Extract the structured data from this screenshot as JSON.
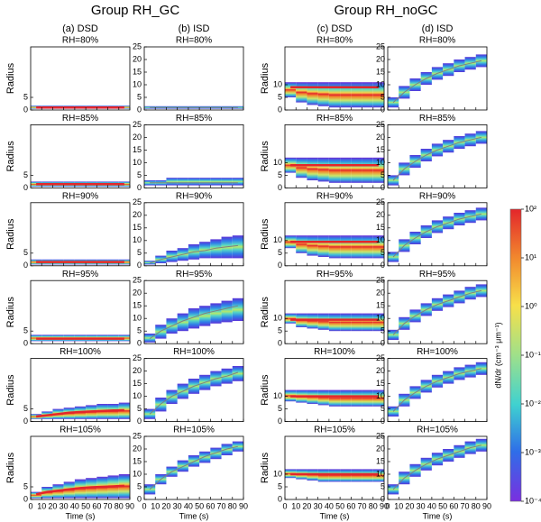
{
  "group_titles": [
    "Group RH_GC",
    "Group RH_noGC"
  ],
  "columns": [
    {
      "title": "(a) DSD",
      "kind": "DSD",
      "center_color": "#e3262b",
      "yticks": [
        0,
        5
      ]
    },
    {
      "title": "(b) ISD",
      "kind": "ISD",
      "center_color": "#808080",
      "yticks": [
        0,
        5,
        10,
        15,
        20,
        25
      ]
    },
    {
      "title": "(c) DSD",
      "kind": "DSD",
      "center_color": "#e3262b",
      "yticks": [
        0,
        5,
        10
      ]
    },
    {
      "title": "(d) ISD",
      "kind": "ISD",
      "center_color": "#808080",
      "yticks": [
        0,
        5,
        10,
        15,
        20,
        25
      ]
    }
  ],
  "x_axis": {
    "label": "Time (s)",
    "lim": [
      0,
      90
    ],
    "ticks": [
      0,
      10,
      20,
      30,
      40,
      50,
      60,
      70,
      80,
      90
    ]
  },
  "y_axis": {
    "label": "Radius",
    "lim": [
      0,
      25
    ]
  },
  "colorbar": {
    "label": "dN/dr (cm⁻³ μm⁻¹)",
    "lim": [
      0.0001,
      100
    ],
    "log": true,
    "ticks": [
      {
        "value": 100,
        "label": "10²"
      },
      {
        "value": 10,
        "label": "10¹"
      },
      {
        "value": 1,
        "label": "10⁰"
      },
      {
        "value": 0.1,
        "label": "10⁻¹"
      },
      {
        "value": 0.01,
        "label": "10⁻²"
      },
      {
        "value": 0.001,
        "label": "10⁻³"
      },
      {
        "value": 0.0001,
        "label": "10⁻⁴"
      }
    ]
  },
  "chart_data": [
    {
      "type": "heatmap",
      "title": "RH=80%",
      "x": [
        5,
        15,
        25,
        35,
        45,
        55,
        65,
        75,
        85
      ],
      "center": [
        1,
        1,
        1,
        1,
        1,
        1,
        1,
        1,
        1
      ],
      "lower": [
        0.5,
        0.5,
        0.5,
        0.5,
        0.5,
        0.5,
        0.5,
        0.5,
        0.5
      ],
      "upper": [
        1.7,
        1.7,
        1.7,
        1.7,
        1.7,
        1.7,
        1.7,
        1.7,
        1.7
      ]
    },
    {
      "type": "heatmap",
      "title": "RH=80%",
      "x": [
        5,
        15,
        25,
        35,
        45,
        55,
        65,
        75,
        85
      ],
      "center": [
        1,
        1,
        1,
        1,
        1,
        1,
        1,
        1,
        1
      ],
      "lower": [
        0.5,
        0.5,
        0.5,
        0.5,
        0.5,
        0.5,
        0.5,
        0.5,
        0.5
      ],
      "upper": [
        1.5,
        1.5,
        1.5,
        1.5,
        1.5,
        1.5,
        1.5,
        1.5,
        1.5
      ]
    },
    {
      "type": "heatmap",
      "title": "RH=80%",
      "x": [
        5,
        15,
        25,
        35,
        45,
        55,
        65,
        75,
        85
      ],
      "center": [
        9,
        9,
        9,
        9,
        9,
        9,
        9,
        9,
        9
      ],
      "lower": [
        5,
        3,
        2,
        1.5,
        1,
        1,
        1,
        1,
        1
      ],
      "upper": [
        11,
        11,
        11,
        11,
        11,
        11,
        11,
        11,
        11
      ]
    },
    {
      "type": "heatmap",
      "title": "RH=80%",
      "x": [
        5,
        15,
        25,
        35,
        45,
        55,
        65,
        75,
        85
      ],
      "center": [
        3,
        7,
        10,
        12.5,
        14.5,
        16,
        17.5,
        18.5,
        19.5
      ],
      "lower": [
        1,
        4.5,
        7.5,
        10,
        12,
        13.5,
        15,
        16,
        17
      ],
      "upper": [
        5,
        9.5,
        12.5,
        15,
        17,
        18.5,
        20,
        21,
        22
      ]
    },
    {
      "type": "heatmap",
      "title": "RH=85%",
      "x": [
        5,
        15,
        25,
        35,
        45,
        55,
        65,
        75,
        85
      ],
      "center": [
        1.5,
        1.5,
        1.5,
        1.5,
        1.5,
        1.5,
        1.5,
        1.5,
        1.5
      ],
      "lower": [
        0.5,
        0.5,
        0.5,
        0.5,
        0.5,
        0.5,
        0.5,
        0.5,
        0.5
      ],
      "upper": [
        2.5,
        2.5,
        2.5,
        2.5,
        2.5,
        2.5,
        2.5,
        2.5,
        2.5
      ]
    },
    {
      "type": "heatmap",
      "title": "RH=85%",
      "x": [
        5,
        15,
        25,
        35,
        45,
        55,
        65,
        75,
        85
      ],
      "center": [
        2,
        2,
        2,
        2,
        2,
        2,
        2,
        2,
        2
      ],
      "lower": [
        1,
        1,
        1,
        1,
        1,
        1,
        1,
        1,
        1
      ],
      "upper": [
        3,
        3,
        4,
        4,
        4,
        4,
        4,
        4,
        4
      ]
    },
    {
      "type": "heatmap",
      "title": "RH=85%",
      "x": [
        5,
        15,
        25,
        35,
        45,
        55,
        65,
        75,
        85
      ],
      "center": [
        9,
        9,
        9,
        9,
        9,
        9,
        9,
        9,
        9
      ],
      "lower": [
        6,
        4,
        3,
        2.5,
        2,
        2,
        2,
        2,
        2
      ],
      "upper": [
        12,
        12,
        12,
        12,
        12,
        12,
        12,
        12,
        12
      ]
    },
    {
      "type": "heatmap",
      "title": "RH=85%",
      "x": [
        5,
        15,
        25,
        35,
        45,
        55,
        65,
        75,
        85
      ],
      "center": [
        3,
        7.5,
        10.5,
        13,
        15,
        16.5,
        18,
        19,
        20
      ],
      "lower": [
        1,
        5,
        8,
        10.5,
        12.5,
        14,
        15.5,
        16.5,
        17.5
      ],
      "upper": [
        5,
        10,
        13,
        15.5,
        17.5,
        19,
        20.5,
        21.5,
        22.5
      ]
    },
    {
      "type": "heatmap",
      "title": "RH=90%",
      "x": [
        5,
        15,
        25,
        35,
        45,
        55,
        65,
        75,
        85
      ],
      "center": [
        1.5,
        1.5,
        1.5,
        1.5,
        1.5,
        1.5,
        1.5,
        1.5,
        1.5
      ],
      "lower": [
        0.5,
        0.5,
        0.5,
        0.5,
        0.5,
        0.5,
        0.5,
        0.5,
        0.5
      ],
      "upper": [
        2.5,
        2.5,
        2.5,
        2.5,
        2.5,
        2.5,
        2.5,
        2.5,
        2.5
      ]
    },
    {
      "type": "heatmap",
      "title": "RH=90%",
      "x": [
        5,
        15,
        25,
        35,
        45,
        55,
        65,
        75,
        85
      ],
      "center": [
        1,
        2.5,
        3.5,
        4.5,
        5.5,
        6,
        7,
        7.5,
        8
      ],
      "lower": [
        0.5,
        1,
        1.5,
        2,
        2.5,
        3,
        3,
        3,
        3
      ],
      "upper": [
        2,
        4,
        6,
        7,
        8.5,
        9.5,
        10.5,
        11.5,
        12
      ]
    },
    {
      "type": "heatmap",
      "title": "RH=90%",
      "x": [
        5,
        15,
        25,
        35,
        45,
        55,
        65,
        75,
        85
      ],
      "center": [
        9.5,
        9.5,
        9.5,
        9.5,
        9.5,
        9.5,
        9.5,
        9.5,
        9.5
      ],
      "lower": [
        7,
        5,
        4,
        3.5,
        3,
        3,
        3,
        3,
        3
      ],
      "upper": [
        12,
        12,
        12,
        12,
        12,
        12,
        12,
        12,
        12
      ]
    },
    {
      "type": "heatmap",
      "title": "RH=90%",
      "x": [
        5,
        15,
        25,
        35,
        45,
        55,
        65,
        75,
        85
      ],
      "center": [
        3.5,
        8,
        11,
        13.5,
        15.5,
        17,
        18.5,
        19.5,
        20.5
      ],
      "lower": [
        1.5,
        5.5,
        8.5,
        11,
        13,
        14.5,
        16,
        17,
        18
      ],
      "upper": [
        5.5,
        10.5,
        13.5,
        16,
        18,
        19.5,
        21,
        22,
        23
      ]
    },
    {
      "type": "heatmap",
      "title": "RH=95%",
      "x": [
        5,
        15,
        25,
        35,
        45,
        55,
        65,
        75,
        85
      ],
      "center": [
        2,
        2,
        2,
        2,
        2,
        2,
        2,
        2,
        2
      ],
      "lower": [
        1,
        1,
        1,
        1,
        1,
        1,
        1,
        1,
        1
      ],
      "upper": [
        3.5,
        3.5,
        3.5,
        3.5,
        3.5,
        3.5,
        3.5,
        3.5,
        3.5
      ]
    },
    {
      "type": "heatmap",
      "title": "RH=95%",
      "x": [
        5,
        15,
        25,
        35,
        45,
        55,
        65,
        75,
        85
      ],
      "center": [
        2,
        5,
        7,
        9,
        10.5,
        12,
        13,
        14,
        15
      ],
      "lower": [
        0.5,
        2,
        4,
        5,
        6,
        7,
        8,
        8.5,
        9
      ],
      "upper": [
        4,
        7.5,
        10,
        12,
        14,
        15,
        16,
        17,
        18
      ]
    },
    {
      "type": "heatmap",
      "title": "RH=95%",
      "x": [
        5,
        15,
        25,
        35,
        45,
        55,
        65,
        75,
        85
      ],
      "center": [
        9.5,
        9.5,
        9.5,
        9.5,
        9.5,
        9.5,
        9.5,
        9.5,
        9.5
      ],
      "lower": [
        8,
        6.5,
        6,
        5.5,
        5,
        5,
        5,
        5,
        5
      ],
      "upper": [
        12,
        12,
        12,
        12,
        12,
        12,
        12,
        12,
        12
      ]
    },
    {
      "type": "heatmap",
      "title": "RH=95%",
      "x": [
        5,
        15,
        25,
        35,
        45,
        55,
        65,
        75,
        85
      ],
      "center": [
        3.5,
        8,
        11,
        13.5,
        15.5,
        17,
        18.5,
        20,
        21
      ],
      "lower": [
        1.5,
        5.5,
        8.5,
        11,
        13,
        14.5,
        16,
        17.5,
        18.5
      ],
      "upper": [
        5.5,
        10.5,
        13.5,
        16,
        18,
        19.5,
        21,
        22.5,
        23.5
      ]
    },
    {
      "type": "heatmap",
      "title": "RH=100%",
      "x": [
        5,
        15,
        25,
        35,
        45,
        55,
        65,
        75,
        85
      ],
      "center": [
        2,
        2.5,
        3,
        3.5,
        3.8,
        4,
        4.2,
        4.4,
        4.5
      ],
      "lower": [
        1,
        1,
        1,
        1,
        1,
        1,
        1,
        1,
        1
      ],
      "upper": [
        3,
        4,
        5,
        5.5,
        6,
        6.5,
        7,
        7,
        7.5
      ]
    },
    {
      "type": "heatmap",
      "title": "RH=100%",
      "x": [
        5,
        15,
        25,
        35,
        45,
        55,
        65,
        75,
        85
      ],
      "center": [
        3,
        7,
        10,
        12,
        14,
        15.5,
        17,
        18,
        19.5
      ],
      "lower": [
        1,
        4,
        7,
        9,
        11,
        12.5,
        14,
        15,
        16
      ],
      "upper": [
        5,
        9.5,
        12.5,
        15,
        17,
        18.5,
        20,
        21,
        22
      ]
    },
    {
      "type": "heatmap",
      "title": "RH=100%",
      "x": [
        5,
        15,
        25,
        35,
        45,
        55,
        65,
        75,
        85
      ],
      "center": [
        10,
        10,
        10,
        10,
        10,
        10,
        10,
        10,
        10
      ],
      "lower": [
        8,
        7.5,
        7,
        6.5,
        6,
        6,
        6,
        6,
        6
      ],
      "upper": [
        12.5,
        12.5,
        12.5,
        12.5,
        12.5,
        12.5,
        12.5,
        12.5,
        12.5
      ]
    },
    {
      "type": "heatmap",
      "title": "RH=100%",
      "x": [
        5,
        15,
        25,
        35,
        45,
        55,
        65,
        75,
        85
      ],
      "center": [
        4,
        8.5,
        11.5,
        14,
        16,
        17.5,
        19,
        20,
        21
      ],
      "lower": [
        2,
        6,
        9,
        11.5,
        13.5,
        15,
        16.5,
        17.5,
        18.5
      ],
      "upper": [
        6,
        11,
        14,
        16.5,
        18.5,
        20,
        21.5,
        22.5,
        23.5
      ]
    },
    {
      "type": "heatmap",
      "title": "RH=105%",
      "x": [
        5,
        15,
        25,
        35,
        45,
        55,
        65,
        75,
        85
      ],
      "center": [
        2,
        3,
        3.5,
        4,
        4.5,
        4.8,
        5,
        5.2,
        5.4
      ],
      "lower": [
        0.5,
        0.5,
        0.5,
        0.5,
        0.5,
        0.5,
        0.5,
        0.5,
        0.5
      ],
      "upper": [
        3,
        5,
        6,
        7,
        8,
        8.5,
        9,
        9.5,
        10
      ]
    },
    {
      "type": "heatmap",
      "title": "RH=105%",
      "x": [
        5,
        15,
        25,
        35,
        45,
        55,
        65,
        75,
        85
      ],
      "center": [
        4,
        8,
        11,
        13,
        15,
        17,
        18.5,
        20,
        21
      ],
      "lower": [
        2,
        6,
        9,
        11,
        13,
        14.5,
        16,
        17.5,
        19
      ],
      "upper": [
        6,
        10,
        13,
        15.5,
        17.5,
        19,
        20.5,
        22,
        23
      ]
    },
    {
      "type": "heatmap",
      "title": "RH=105%",
      "x": [
        5,
        15,
        25,
        35,
        45,
        55,
        65,
        75,
        85
      ],
      "center": [
        10,
        10,
        10,
        10,
        10,
        10,
        10,
        10,
        10
      ],
      "lower": [
        8.5,
        8,
        7.5,
        7,
        7,
        7,
        7,
        7,
        7
      ],
      "upper": [
        12,
        12,
        12,
        12,
        12,
        12,
        12,
        12,
        12
      ]
    },
    {
      "type": "heatmap",
      "title": "RH=105%",
      "x": [
        5,
        15,
        25,
        35,
        45,
        55,
        65,
        75,
        85
      ],
      "center": [
        4,
        8.5,
        11.5,
        14,
        16,
        17.5,
        19,
        20.5,
        21.5
      ],
      "lower": [
        2,
        6,
        9,
        11.5,
        13.5,
        15,
        16.5,
        18,
        19
      ],
      "upper": [
        6,
        11,
        14,
        16.5,
        18.5,
        20,
        21.5,
        23,
        24
      ]
    }
  ]
}
